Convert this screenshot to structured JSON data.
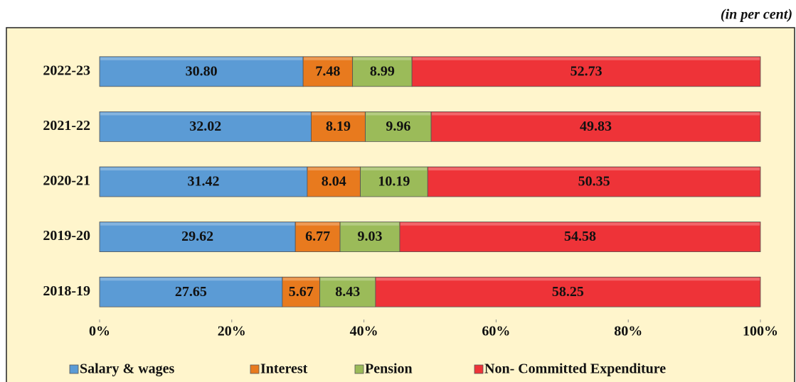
{
  "chart_data": {
    "type": "stacked_bar_horizontal",
    "annotation": "(in per cent)",
    "categories": [
      "2018-19",
      "2019-20",
      "2020-21",
      "2021-22",
      "2022-23"
    ],
    "series": [
      {
        "name": "Salary & wages",
        "color": "#5B9BD5",
        "values": [
          27.65,
          29.62,
          31.42,
          32.02,
          30.8
        ],
        "value_labels": [
          "27.65",
          "29.62",
          "31.42",
          "32.02",
          "30.80"
        ]
      },
      {
        "name": "Interest",
        "color": "#E87A1E",
        "values": [
          5.67,
          6.77,
          8.04,
          8.19,
          7.48
        ],
        "value_labels": [
          "5.67",
          "6.77",
          "8.04",
          "8.19",
          "7.48"
        ]
      },
      {
        "name": "Pension",
        "color": "#9BBB59",
        "values": [
          8.43,
          9.03,
          10.19,
          9.96,
          8.99
        ],
        "value_labels": [
          "8.43",
          "9.03",
          "10.19",
          "9.96",
          "8.99"
        ]
      },
      {
        "name": "Non- Committed Expenditure",
        "color": "#EE3338",
        "values": [
          58.25,
          54.58,
          50.35,
          49.83,
          52.73
        ],
        "value_labels": [
          "58.25",
          "54.58",
          "50.35",
          "49.83",
          "52.73"
        ]
      }
    ],
    "xlim": [
      0,
      100
    ],
    "xticks": [
      {
        "value": 0,
        "label": "0%"
      },
      {
        "value": 20,
        "label": "20%"
      },
      {
        "value": 40,
        "label": "40%"
      },
      {
        "value": 60,
        "label": "60%"
      },
      {
        "value": 80,
        "label": "80%"
      },
      {
        "value": 100,
        "label": "100%"
      }
    ],
    "legend": "bottom"
  }
}
